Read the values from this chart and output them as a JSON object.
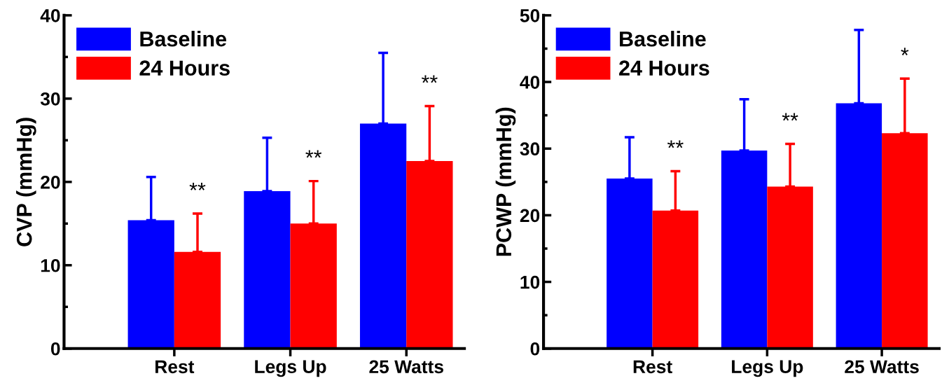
{
  "chart_data": [
    {
      "type": "bar",
      "ylabel": "CVP (mmHg)",
      "categories": [
        "Rest",
        "Legs Up",
        "25 Watts"
      ],
      "series": [
        {
          "name": "Baseline",
          "color": "#0000ff",
          "values": [
            15.4,
            18.9,
            27.0
          ],
          "errors": [
            [
              15.4,
              20.6
            ],
            [
              18.9,
              25.3
            ],
            [
              27.0,
              35.5
            ]
          ]
        },
        {
          "name": "24 Hours",
          "color": "#ff0000",
          "values": [
            11.6,
            15.0,
            22.5
          ],
          "errors": [
            [
              11.6,
              16.2
            ],
            [
              15.0,
              20.1
            ],
            [
              22.5,
              29.1
            ]
          ]
        }
      ],
      "annotations": [
        "**",
        "**",
        "**"
      ],
      "ylim": [
        0,
        40
      ],
      "yticks": [
        0,
        10,
        20,
        30,
        40
      ],
      "legend": "top left",
      "grid": false
    },
    {
      "type": "bar",
      "ylabel": "PCWP (mmHg)",
      "categories": [
        "Rest",
        "Legs Up",
        "25 Watts"
      ],
      "series": [
        {
          "name": "Baseline",
          "color": "#0000ff",
          "values": [
            25.5,
            29.7,
            36.8
          ],
          "errors": [
            [
              25.5,
              31.7
            ],
            [
              29.7,
              37.4
            ],
            [
              36.8,
              47.8
            ]
          ]
        },
        {
          "name": "24 Hours",
          "color": "#ff0000",
          "values": [
            20.7,
            24.3,
            32.3
          ],
          "errors": [
            [
              20.7,
              26.6
            ],
            [
              24.3,
              30.7
            ],
            [
              32.3,
              40.5
            ]
          ]
        }
      ],
      "annotations": [
        "**",
        "**",
        "*"
      ],
      "ylim": [
        0,
        50
      ],
      "yticks": [
        0,
        10,
        20,
        30,
        40,
        50
      ],
      "legend": "top left",
      "grid": false
    }
  ]
}
